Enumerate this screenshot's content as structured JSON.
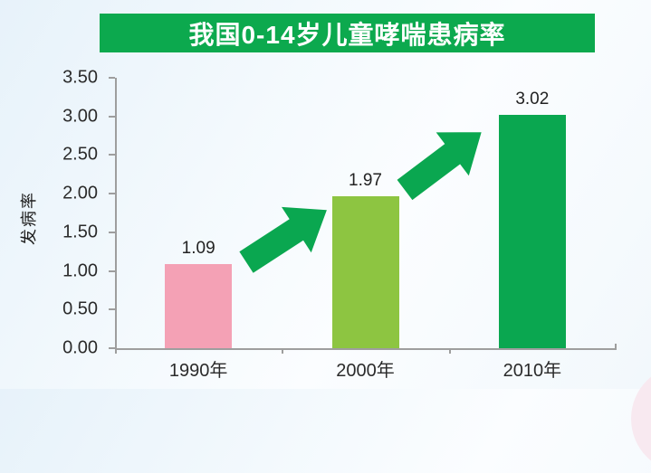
{
  "title": {
    "text": "我国0-14岁儿童哮喘患病率"
  },
  "chart_data": {
    "type": "bar",
    "title": "我国0-14岁儿童哮喘患病率",
    "categories": [
      "1990年",
      "2000年",
      "2010年"
    ],
    "values": [
      1.09,
      1.97,
      3.02
    ],
    "value_labels": [
      "1.09",
      "1.97",
      "3.02"
    ],
    "bar_colors": [
      "#f4a1b5",
      "#8dc541",
      "#0aa750"
    ],
    "xlabel": "",
    "ylabel": "发病率",
    "ylim": [
      0,
      3.5
    ],
    "yticks": [
      "3.50",
      "3.00",
      "2.50",
      "2.00",
      "1.50",
      "1.00",
      "0.50",
      "0.00"
    ],
    "grid": false,
    "legend": "none",
    "annotations": [
      "up-right trend arrow between 1990 and 2000 bars",
      "up-right trend arrow between 2000 and 2010 bars"
    ]
  },
  "colors": {
    "title_banner_bg": "#0ca94e",
    "title_text": "#ffffff",
    "arrow_green": "#0aa750",
    "axis_line": "#9e9e9e",
    "tick_text": "#2b2b2b",
    "decor_circle_pink": "#f8e9f0"
  }
}
